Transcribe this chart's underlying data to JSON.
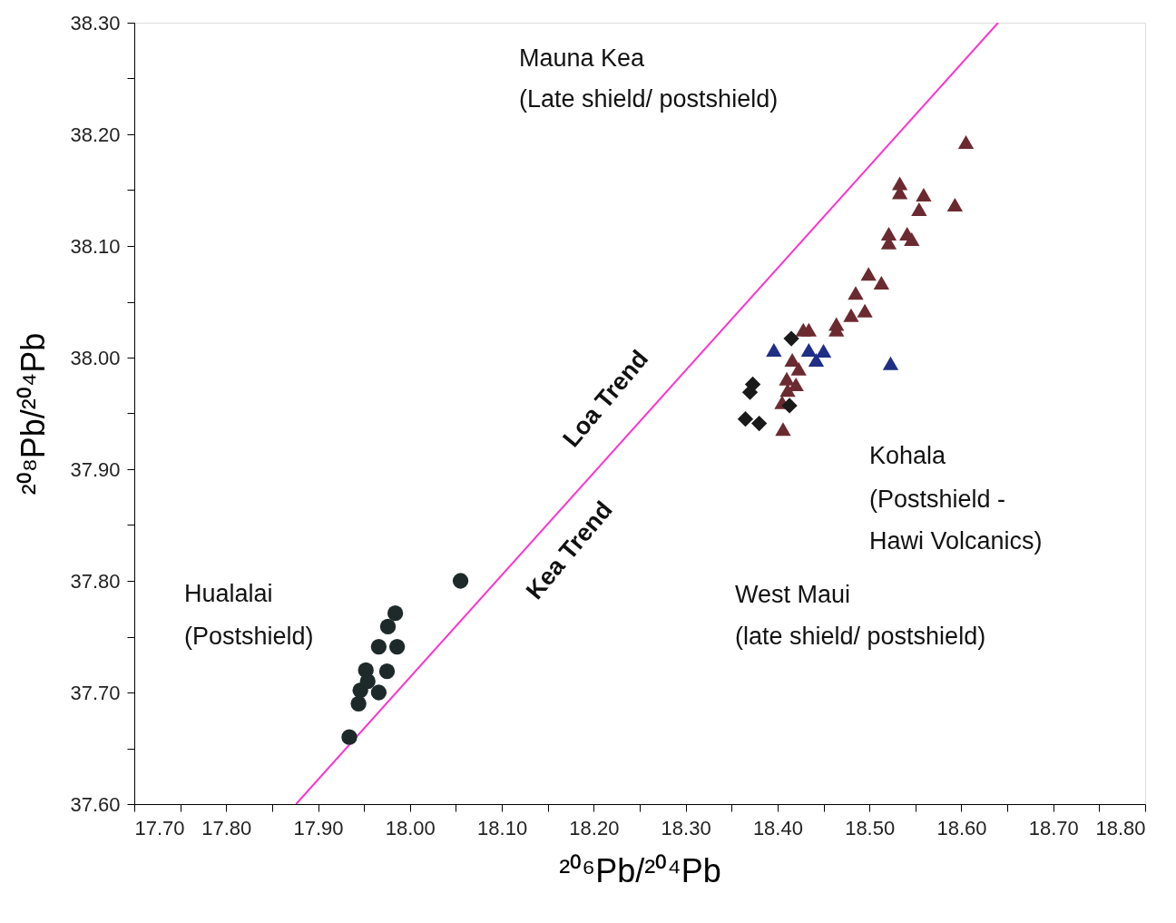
{
  "chart_data": {
    "type": "scatter",
    "xlabel": "²⁰⁶Pb/²⁰⁴Pb",
    "ylabel": "²⁰⁸Pb/²⁰⁴Pb",
    "xlim": [
      17.7,
      18.8
    ],
    "ylim": [
      37.6,
      38.3
    ],
    "xticks": [
      {
        "value": 17.7,
        "label": "17.70"
      },
      {
        "value": 17.75,
        "label": null
      },
      {
        "value": 17.8,
        "label": "17.80"
      },
      {
        "value": 17.85,
        "label": null
      },
      {
        "value": 17.9,
        "label": "17.90"
      },
      {
        "value": 17.95,
        "label": null
      },
      {
        "value": 18.0,
        "label": "18.00"
      },
      {
        "value": 18.05,
        "label": null
      },
      {
        "value": 18.1,
        "label": "18.10"
      },
      {
        "value": 18.15,
        "label": null
      },
      {
        "value": 18.2,
        "label": "18.20"
      },
      {
        "value": 18.25,
        "label": null
      },
      {
        "value": 18.3,
        "label": "18.30"
      },
      {
        "value": 18.35,
        "label": null
      },
      {
        "value": 18.4,
        "label": "18.40"
      },
      {
        "value": 18.45,
        "label": null
      },
      {
        "value": 18.5,
        "label": "18.50"
      },
      {
        "value": 18.55,
        "label": null
      },
      {
        "value": 18.6,
        "label": "18.60"
      },
      {
        "value": 18.65,
        "label": null
      },
      {
        "value": 18.7,
        "label": "18.70"
      },
      {
        "value": 18.75,
        "label": null
      },
      {
        "value": 18.8,
        "label": "18.80"
      }
    ],
    "yticks": [
      {
        "value": 37.6,
        "label": "37.60"
      },
      {
        "value": 37.65,
        "label": null
      },
      {
        "value": 37.7,
        "label": "37.70"
      },
      {
        "value": 37.75,
        "label": null
      },
      {
        "value": 37.8,
        "label": "37.80"
      },
      {
        "value": 37.85,
        "label": null
      },
      {
        "value": 37.9,
        "label": "37.90"
      },
      {
        "value": 37.95,
        "label": null
      },
      {
        "value": 38.0,
        "label": "38.00"
      },
      {
        "value": 38.05,
        "label": null
      },
      {
        "value": 38.1,
        "label": "38.10"
      },
      {
        "value": 38.15,
        "label": null
      },
      {
        "value": 38.2,
        "label": "38.20"
      },
      {
        "value": 38.25,
        "label": null
      },
      {
        "value": 38.3,
        "label": "38.30"
      }
    ],
    "grid": false,
    "series": [
      {
        "type": "line",
        "color": "#ff33cc",
        "marker": "none",
        "line_style": "solid",
        "x": [
          17.876,
          18.64
        ],
        "values": [
          37.6,
          38.3
        ]
      },
      {
        "color": "#1e2a2a",
        "marker": "circle",
        "x": [
          17.934,
          18.055,
          17.984,
          17.976,
          17.966,
          17.986,
          17.952,
          17.975,
          17.946,
          17.966,
          17.944,
          17.954
        ],
        "values": [
          37.66,
          37.8,
          37.771,
          37.759,
          37.741,
          37.741,
          37.72,
          37.719,
          37.702,
          37.7,
          37.69,
          37.71
        ]
      },
      {
        "color": "#6b2a30",
        "marker": "triangle",
        "x": [
          18.605,
          18.533,
          18.533,
          18.559,
          18.554,
          18.593,
          18.521,
          18.521,
          18.541,
          18.546,
          18.499,
          18.513,
          18.485,
          18.495,
          18.48,
          18.464,
          18.464,
          18.434,
          18.428,
          18.416,
          18.41,
          18.411,
          18.405,
          18.42,
          18.406,
          18.423
        ],
        "values": [
          38.193,
          38.156,
          38.148,
          38.146,
          38.133,
          38.137,
          38.111,
          38.103,
          38.111,
          38.106,
          38.075,
          38.067,
          38.058,
          38.042,
          38.038,
          38.03,
          38.025,
          38.025,
          38.025,
          37.998,
          37.981,
          37.971,
          37.96,
          37.976,
          37.936,
          37.99
        ]
      },
      {
        "color": "#1a1a1a",
        "marker": "diamond",
        "x": [
          18.373,
          18.37,
          18.365,
          18.38,
          18.415,
          18.413
        ],
        "values": [
          37.976,
          37.969,
          37.945,
          37.941,
          38.017,
          37.957
        ]
      },
      {
        "color": "#1f2e86",
        "marker": "triangle",
        "x": [
          18.396,
          18.434,
          18.45,
          18.442,
          18.523
        ],
        "values": [
          38.007,
          38.007,
          38.006,
          37.998,
          37.995
        ]
      }
    ],
    "annotations": [
      "Mauna Kea",
      "(Late shield/ postshield)",
      "Kohala",
      "(Postshield -",
      "Hawi Volcanics)",
      "West Maui",
      "(late shield/ postshield)",
      "Hualalai",
      "(Postshield)",
      "Loa Trend",
      "Kea Trend"
    ]
  }
}
